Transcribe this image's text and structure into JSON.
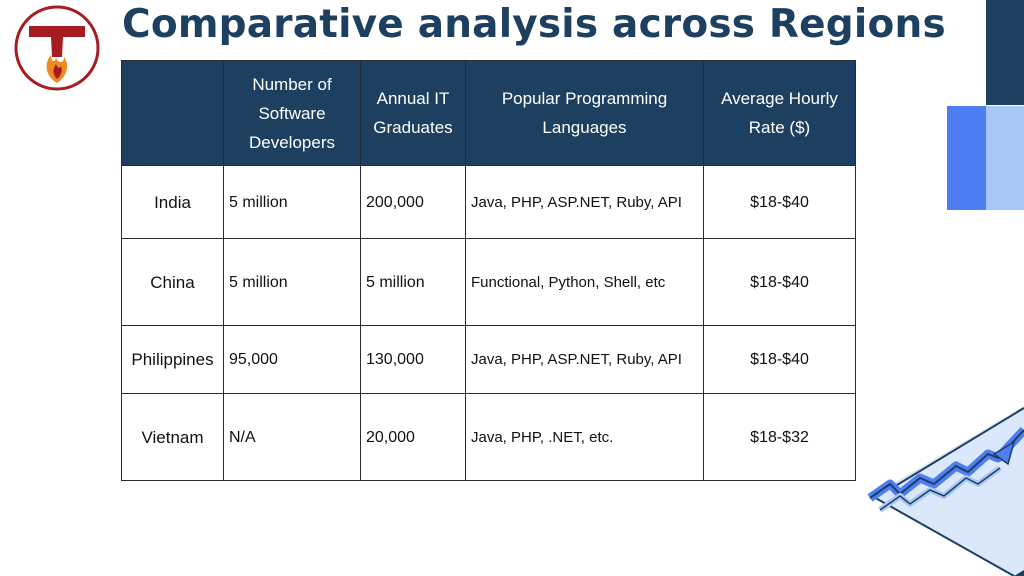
{
  "page": {
    "title": "Comparative analysis across Regions",
    "logo_icon": "t-flame-logo-icon",
    "chart_icon": "rising-arrow-chart-icon"
  },
  "colors": {
    "navy": "#1d4060",
    "accent_blue": "#4f7df3",
    "light_blue": "#a9c7f6",
    "logo_red": "#a71c1f",
    "logo_orange": "#f08a24"
  },
  "table": {
    "headers": [
      "",
      "Number of Software Developers",
      "Annual IT Graduates",
      "Popular Programming Languages",
      "Average Hourly Rate ($)"
    ],
    "rows": [
      {
        "region": "India",
        "developers": "5 million",
        "graduates": "200,000",
        "languages": "Java, PHP, ASP.NET, Ruby, API",
        "rate": "$18-$40"
      },
      {
        "region": "China",
        "developers": "5 million",
        "graduates": "5 million",
        "languages": "Functional, Python, Shell, etc",
        "rate": "$18-$40"
      },
      {
        "region": "Philippines",
        "developers": "95,000",
        "graduates": "130,000",
        "languages": "Java, PHP, ASP.NET, Ruby, API",
        "rate": "$18-$40"
      },
      {
        "region": "Vietnam",
        "developers": "N/A",
        "graduates": "20,000",
        "languages": "Java, PHP, .NET, etc.",
        "rate": "$18-$32"
      }
    ]
  }
}
